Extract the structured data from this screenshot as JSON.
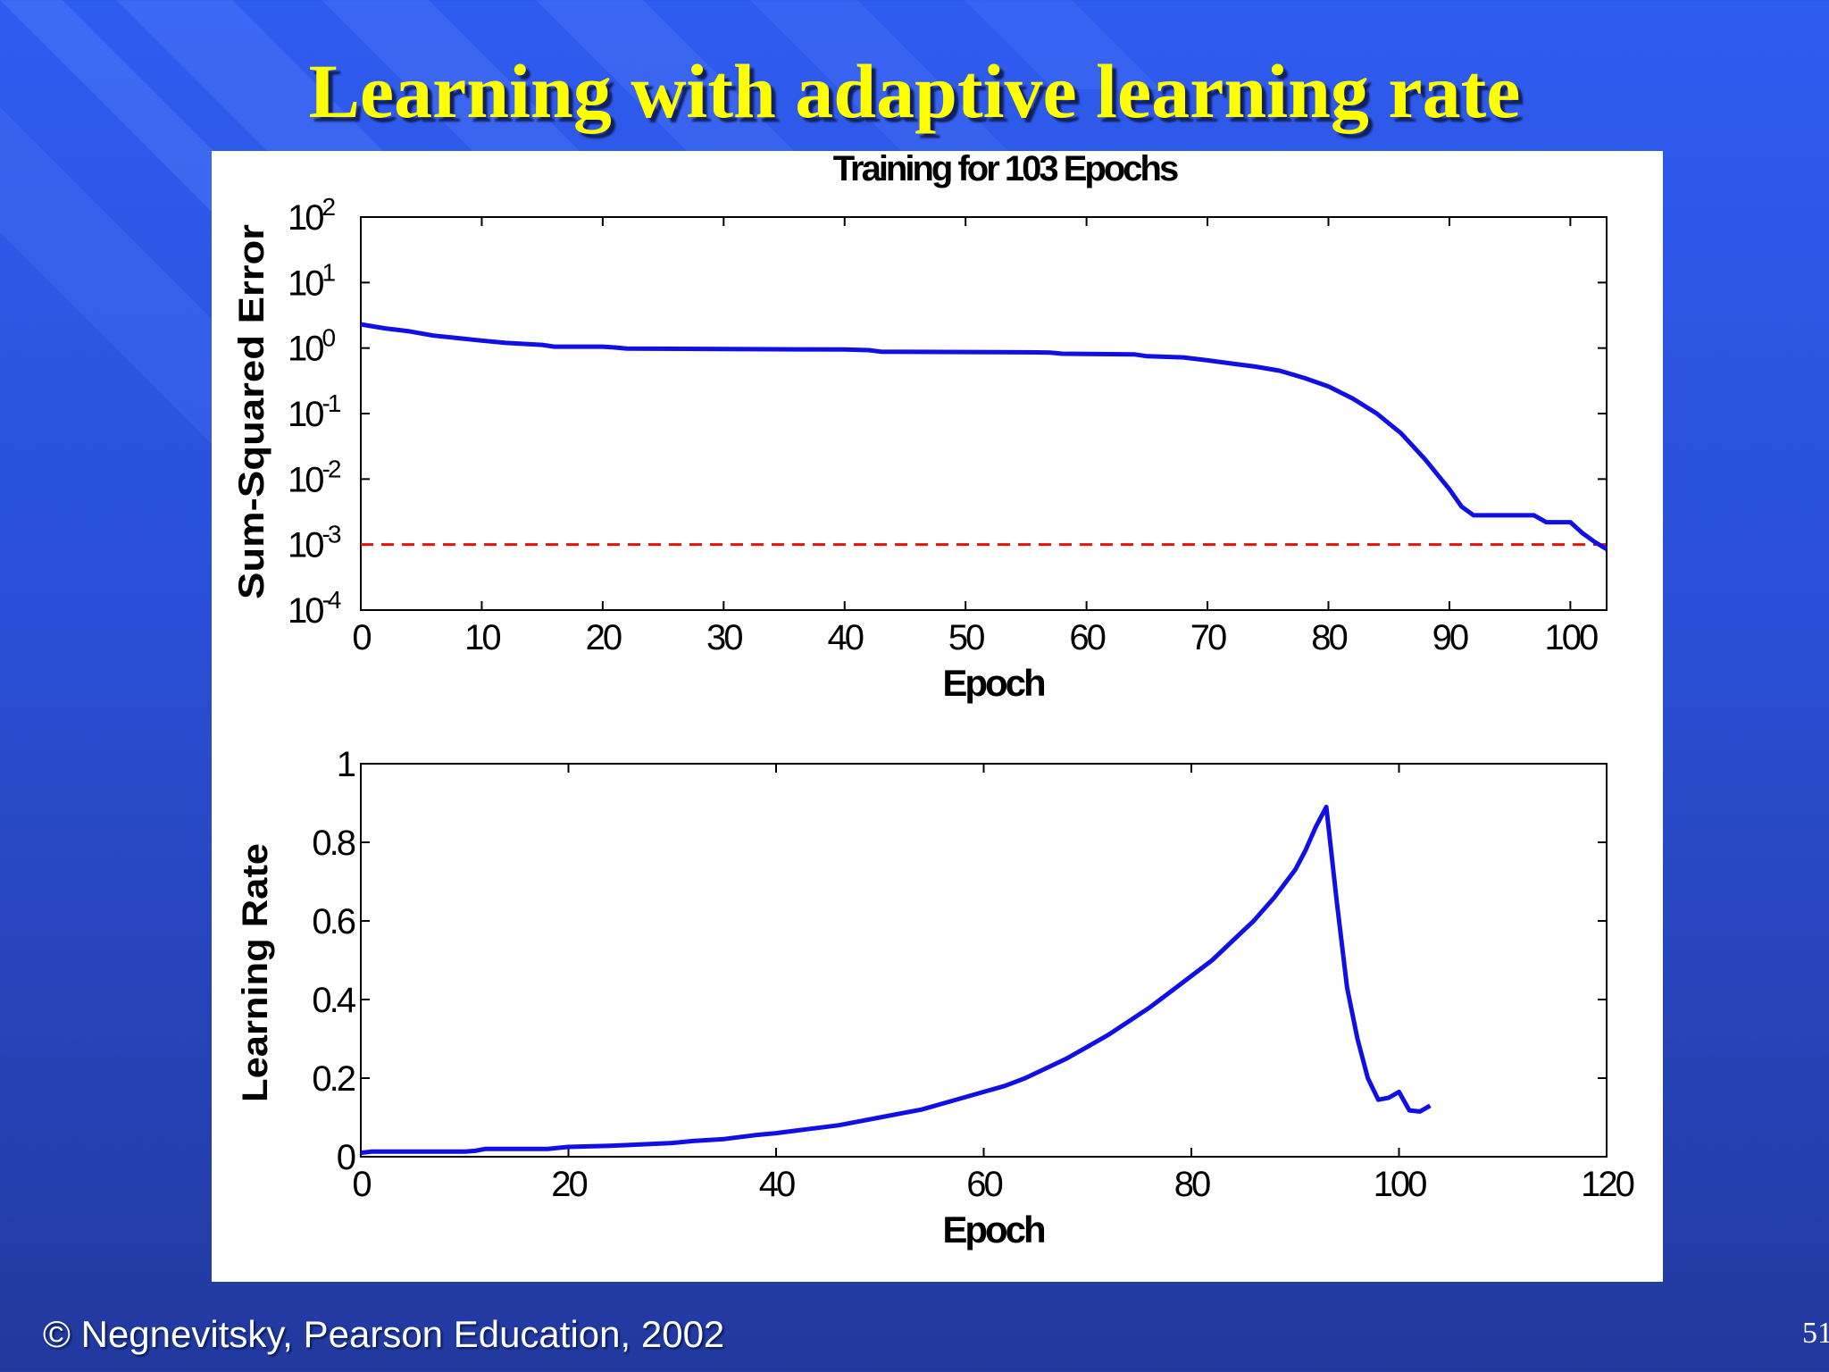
{
  "slide": {
    "title": "Learning with adaptive learning rate",
    "footer": "© Negnevitsky, Pearson Education, 2002",
    "page_number": "51"
  },
  "colors": {
    "line": "#1010e6",
    "goal": "#e61010",
    "title": "#ffff00"
  },
  "chart_data": [
    {
      "type": "line",
      "title": "Training for 103 Epochs",
      "xlabel": "Epoch",
      "ylabel": "Sum-Squared Error",
      "yscale": "log",
      "xlim": [
        0,
        103
      ],
      "ylim": [
        0.0001,
        100
      ],
      "xticks": [
        "0",
        "10",
        "20",
        "30",
        "40",
        "50",
        "60",
        "70",
        "80",
        "90",
        "100"
      ],
      "yticks": [
        {
          "base": "10",
          "exp": "2"
        },
        {
          "base": "10",
          "exp": "1"
        },
        {
          "base": "10",
          "exp": "0"
        },
        {
          "base": "10",
          "exp": "-1"
        },
        {
          "base": "10",
          "exp": "-2"
        },
        {
          "base": "10",
          "exp": "-3"
        },
        {
          "base": "10",
          "exp": "-4"
        }
      ],
      "goal": 0.001,
      "series": [
        {
          "values": [
            [
              0,
              2.3
            ],
            [
              2,
              2.0
            ],
            [
              4,
              1.8
            ],
            [
              6,
              1.55
            ],
            [
              8,
              1.42
            ],
            [
              10,
              1.3
            ],
            [
              12,
              1.2
            ],
            [
              15,
              1.12
            ],
            [
              16,
              1.05
            ],
            [
              20,
              1.05
            ],
            [
              21,
              1.02
            ],
            [
              22,
              0.98
            ],
            [
              40,
              0.95
            ],
            [
              42,
              0.93
            ],
            [
              43,
              0.88
            ],
            [
              56,
              0.86
            ],
            [
              57,
              0.85
            ],
            [
              58,
              0.82
            ],
            [
              64,
              0.8
            ],
            [
              65,
              0.75
            ],
            [
              68,
              0.72
            ],
            [
              70,
              0.65
            ],
            [
              72,
              0.58
            ],
            [
              74,
              0.52
            ],
            [
              76,
              0.45
            ],
            [
              78,
              0.35
            ],
            [
              80,
              0.26
            ],
            [
              82,
              0.17
            ],
            [
              84,
              0.1
            ],
            [
              86,
              0.05
            ],
            [
              88,
              0.02
            ],
            [
              90,
              0.007
            ],
            [
              91,
              0.0038
            ],
            [
              92,
              0.0028
            ],
            [
              97,
              0.0028
            ],
            [
              98,
              0.0022
            ],
            [
              100,
              0.0022
            ],
            [
              101,
              0.0015
            ],
            [
              102,
              0.0011
            ],
            [
              103,
              0.00085
            ]
          ]
        }
      ]
    },
    {
      "type": "line",
      "xlabel": "Epoch",
      "ylabel": "Learning Rate",
      "xlim": [
        0,
        120
      ],
      "ylim": [
        0,
        1
      ],
      "xticks": [
        "0",
        "20",
        "40",
        "60",
        "80",
        "100",
        "120"
      ],
      "yticks": [
        "0",
        "0.2",
        "0.4",
        "0.6",
        "0.8",
        "1"
      ],
      "series": [
        {
          "values": [
            [
              0,
              0.01
            ],
            [
              1,
              0.013
            ],
            [
              10,
              0.013
            ],
            [
              11,
              0.015
            ],
            [
              12,
              0.02
            ],
            [
              18,
              0.02
            ],
            [
              20,
              0.025
            ],
            [
              24,
              0.028
            ],
            [
              26,
              0.03
            ],
            [
              30,
              0.035
            ],
            [
              32,
              0.04
            ],
            [
              35,
              0.045
            ],
            [
              38,
              0.055
            ],
            [
              40,
              0.06
            ],
            [
              43,
              0.07
            ],
            [
              46,
              0.08
            ],
            [
              48,
              0.09
            ],
            [
              50,
              0.1
            ],
            [
              52,
              0.11
            ],
            [
              54,
              0.12
            ],
            [
              56,
              0.135
            ],
            [
              58,
              0.15
            ],
            [
              60,
              0.165
            ],
            [
              62,
              0.18
            ],
            [
              64,
              0.2
            ],
            [
              66,
              0.225
            ],
            [
              68,
              0.25
            ],
            [
              70,
              0.28
            ],
            [
              72,
              0.31
            ],
            [
              74,
              0.345
            ],
            [
              76,
              0.38
            ],
            [
              78,
              0.42
            ],
            [
              80,
              0.46
            ],
            [
              82,
              0.5
            ],
            [
              84,
              0.55
            ],
            [
              86,
              0.6
            ],
            [
              88,
              0.66
            ],
            [
              90,
              0.73
            ],
            [
              91,
              0.78
            ],
            [
              92,
              0.84
            ],
            [
              93,
              0.89
            ],
            [
              94,
              0.65
            ],
            [
              95,
              0.43
            ],
            [
              96,
              0.3
            ],
            [
              97,
              0.2
            ],
            [
              98,
              0.145
            ],
            [
              99,
              0.15
            ],
            [
              100,
              0.165
            ],
            [
              101,
              0.118
            ],
            [
              102,
              0.115
            ],
            [
              103,
              0.13
            ]
          ]
        }
      ]
    }
  ]
}
